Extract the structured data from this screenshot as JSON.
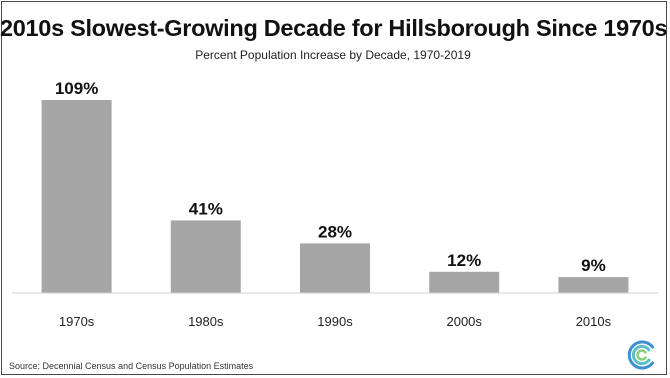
{
  "chart_data": {
    "type": "bar",
    "title": "2010s Slowest-Growing Decade for Hillsborough Since 1970s",
    "subtitle": "Percent Population Increase by Decade, 1970-2019",
    "categories": [
      "1970s",
      "1980s",
      "1990s",
      "2000s",
      "2010s"
    ],
    "values": [
      109,
      41,
      28,
      12,
      9
    ],
    "value_labels": [
      "109%",
      "41%",
      "28%",
      "12%",
      "9%"
    ],
    "xlabel": "",
    "ylabel": "",
    "ylim": [
      0,
      109
    ],
    "grid": false,
    "legend": "none",
    "bar_color": "#a6a6a6"
  },
  "footer": {
    "source": "Source: Decennial Census and Census Population Estimates"
  },
  "logo": {
    "icon": "concentric-c-logo-icon",
    "colors": [
      "#3c8fd0",
      "#5bbfc8",
      "#8ccf7a"
    ]
  }
}
